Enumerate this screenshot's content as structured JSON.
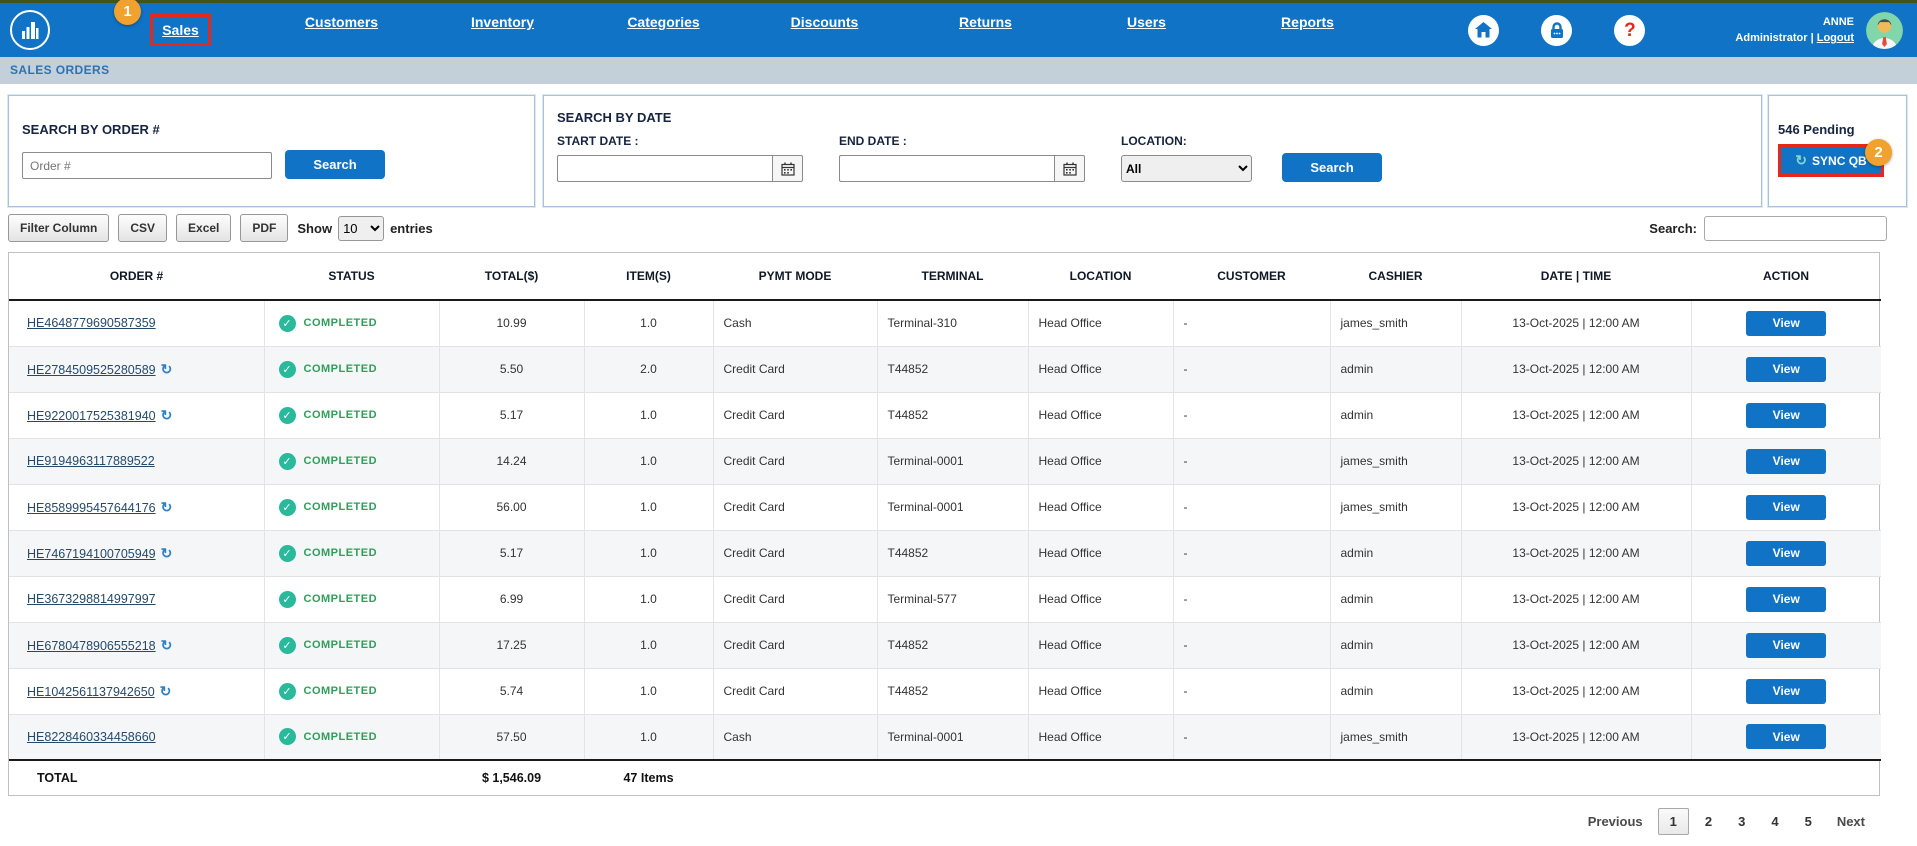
{
  "topnav": {
    "items": [
      {
        "label": "Sales",
        "active": true,
        "badge": "1"
      },
      {
        "label": "Customers"
      },
      {
        "label": "Inventory"
      },
      {
        "label": "Categories"
      },
      {
        "label": "Discounts"
      },
      {
        "label": "Returns"
      },
      {
        "label": "Users"
      },
      {
        "label": "Reports"
      }
    ],
    "user": {
      "name": "ANNE",
      "role": "Administrator",
      "logout": "Logout"
    }
  },
  "breadcrumb": "SALES ORDERS",
  "search_order": {
    "title": "SEARCH BY ORDER #",
    "placeholder": "Order #",
    "button": "Search"
  },
  "search_date": {
    "title": "SEARCH BY DATE",
    "start_label": "START DATE :",
    "end_label": "END DATE :",
    "location_label": "LOCATION:",
    "location_value": "All",
    "button": "Search"
  },
  "sync": {
    "pending": "546 Pending",
    "button": "SYNC QB",
    "badge": "2",
    "icon": "↻"
  },
  "toolbar": {
    "buttons": [
      "Filter Column",
      "CSV",
      "Excel",
      "PDF"
    ],
    "show_label": "Show",
    "show_value": "10",
    "entries_label": "entries",
    "search_label": "Search:"
  },
  "table": {
    "headers": [
      "ORDER #",
      "STATUS",
      "TOTAL($)",
      "ITEM(S)",
      "PYMT MODE",
      "TERMINAL",
      "LOCATION",
      "CUSTOMER",
      "CASHIER",
      "DATE | TIME",
      "ACTION"
    ],
    "rows": [
      {
        "order": "HE4648779690587359",
        "sync": false,
        "status": "COMPLETED",
        "total": "10.99",
        "items": "1.0",
        "pymt": "Cash",
        "terminal": "Terminal-310",
        "location": "Head Office",
        "customer": "-",
        "cashier": "james_smith",
        "datetime": "13-Oct-2025 | 12:00 AM",
        "action": "View"
      },
      {
        "order": "HE2784509525280589",
        "sync": true,
        "status": "COMPLETED",
        "total": "5.50",
        "items": "2.0",
        "pymt": "Credit Card",
        "terminal": "T44852",
        "location": "Head Office",
        "customer": "-",
        "cashier": "admin",
        "datetime": "13-Oct-2025 | 12:00 AM",
        "action": "View"
      },
      {
        "order": "HE9220017525381940",
        "sync": true,
        "status": "COMPLETED",
        "total": "5.17",
        "items": "1.0",
        "pymt": "Credit Card",
        "terminal": "T44852",
        "location": "Head Office",
        "customer": "-",
        "cashier": "admin",
        "datetime": "13-Oct-2025 | 12:00 AM",
        "action": "View"
      },
      {
        "order": "HE9194963117889522",
        "sync": false,
        "status": "COMPLETED",
        "total": "14.24",
        "items": "1.0",
        "pymt": "Credit Card",
        "terminal": "Terminal-0001",
        "location": "Head Office",
        "customer": "-",
        "cashier": "james_smith",
        "datetime": "13-Oct-2025 | 12:00 AM",
        "action": "View"
      },
      {
        "order": "HE8589995457644176",
        "sync": true,
        "status": "COMPLETED",
        "total": "56.00",
        "items": "1.0",
        "pymt": "Credit Card",
        "terminal": "Terminal-0001",
        "location": "Head Office",
        "customer": "-",
        "cashier": "james_smith",
        "datetime": "13-Oct-2025 | 12:00 AM",
        "action": "View"
      },
      {
        "order": "HE7467194100705949",
        "sync": true,
        "status": "COMPLETED",
        "total": "5.17",
        "items": "1.0",
        "pymt": "Credit Card",
        "terminal": "T44852",
        "location": "Head Office",
        "customer": "-",
        "cashier": "admin",
        "datetime": "13-Oct-2025 | 12:00 AM",
        "action": "View"
      },
      {
        "order": "HE3673298814997997",
        "sync": false,
        "status": "COMPLETED",
        "total": "6.99",
        "items": "1.0",
        "pymt": "Credit Card",
        "terminal": "Terminal-577",
        "location": "Head Office",
        "customer": "-",
        "cashier": "admin",
        "datetime": "13-Oct-2025 | 12:00 AM",
        "action": "View"
      },
      {
        "order": "HE6780478906555218",
        "sync": true,
        "status": "COMPLETED",
        "total": "17.25",
        "items": "1.0",
        "pymt": "Credit Card",
        "terminal": "T44852",
        "location": "Head Office",
        "customer": "-",
        "cashier": "admin",
        "datetime": "13-Oct-2025 | 12:00 AM",
        "action": "View"
      },
      {
        "order": "HE1042561137942650",
        "sync": true,
        "status": "COMPLETED",
        "total": "5.74",
        "items": "1.0",
        "pymt": "Credit Card",
        "terminal": "T44852",
        "location": "Head Office",
        "customer": "-",
        "cashier": "admin",
        "datetime": "13-Oct-2025 | 12:00 AM",
        "action": "View"
      },
      {
        "order": "HE8228460334458660",
        "sync": false,
        "status": "COMPLETED",
        "total": "57.50",
        "items": "1.0",
        "pymt": "Cash",
        "terminal": "Terminal-0001",
        "location": "Head Office",
        "customer": "-",
        "cashier": "james_smith",
        "datetime": "13-Oct-2025 | 12:00 AM",
        "action": "View"
      }
    ],
    "footer": {
      "label": "TOTAL",
      "total": "$ 1,546.09",
      "items": "47 Items"
    }
  },
  "pagination": {
    "previous": "Previous",
    "pages": [
      "1",
      "2",
      "3",
      "4",
      "5"
    ],
    "active": "1",
    "next": "Next"
  },
  "colors": {
    "accent_blue": "#1173c6",
    "highlight_red": "#e8271b",
    "badge_orange": "#f0a12e",
    "status_teal": "#2ab99b",
    "status_green": "#2f9e5a"
  }
}
